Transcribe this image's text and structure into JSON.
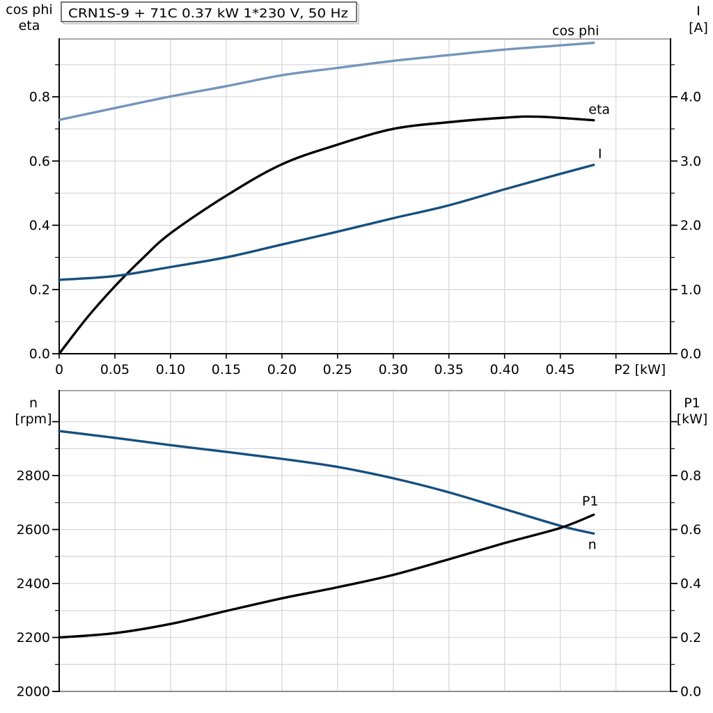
{
  "colors": {
    "background": "#ffffff",
    "grid": "#d9d9d9",
    "frame_gray": "#8c8c8c",
    "axis_black": "#000000",
    "cos_phi_blue": "#7495bb",
    "dark_blue": "#16507f",
    "black": "#000000"
  },
  "chart_data": [
    {
      "type": "line",
      "title": "CRN1S-9 + 71C   0.37 kW   1*230 V, 50 Hz",
      "xlabel": "P2 [kW]",
      "xlim": [
        0,
        0.549
      ],
      "x_ticks": [
        0,
        0.05,
        0.1,
        0.15,
        0.2,
        0.25,
        0.3,
        0.35,
        0.4,
        0.45,
        0.5
      ],
      "x_tick_labels": [
        "0",
        "0.05",
        "0.10",
        "0.15",
        "0.20",
        "0.25",
        "0.30",
        "0.35",
        "0.40",
        "0.45",
        ""
      ],
      "x_gridlines": [
        0.05,
        0.1,
        0.15,
        0.2,
        0.25,
        0.3,
        0.35,
        0.4,
        0.45,
        0.5
      ],
      "left_axis": {
        "label_lines": [
          "cos phi",
          "eta"
        ],
        "lim": [
          0,
          0.98
        ],
        "ticks": [
          0,
          0.2,
          0.4,
          0.6,
          0.8
        ],
        "tick_labels": [
          "0.0",
          "0.2",
          "0.4",
          "0.6",
          "0.8"
        ],
        "minor_tick_step": 0.1,
        "gridlines": [
          0.1,
          0.2,
          0.3,
          0.4,
          0.5,
          0.6,
          0.7,
          0.8,
          0.9
        ]
      },
      "right_axis": {
        "label_lines": [
          "I",
          "[A]"
        ],
        "lim": [
          0,
          4.9
        ],
        "ticks": [
          0,
          1,
          2,
          3,
          4
        ],
        "tick_labels": [
          "0.0",
          "1.0",
          "2.0",
          "3.0",
          "4.0"
        ],
        "minor_tick_step": 0.5
      },
      "series": [
        {
          "name": "cos phi",
          "axis": "left",
          "color": "#7495bb",
          "points": [
            [
              0,
              0.728
            ],
            [
              0.05,
              0.765
            ],
            [
              0.1,
              0.801
            ],
            [
              0.15,
              0.833
            ],
            [
              0.2,
              0.867
            ],
            [
              0.25,
              0.89
            ],
            [
              0.3,
              0.912
            ],
            [
              0.35,
              0.93
            ],
            [
              0.4,
              0.947
            ],
            [
              0.45,
              0.96
            ],
            [
              0.48,
              0.968
            ]
          ]
        },
        {
          "name": "eta",
          "axis": "left",
          "color": "#000000",
          "points": [
            [
              0,
              0
            ],
            [
              0.025,
              0.112
            ],
            [
              0.05,
              0.21
            ],
            [
              0.075,
              0.297
            ],
            [
              0.1,
              0.375
            ],
            [
              0.15,
              0.492
            ],
            [
              0.2,
              0.59
            ],
            [
              0.25,
              0.651
            ],
            [
              0.3,
              0.7
            ],
            [
              0.35,
              0.721
            ],
            [
              0.4,
              0.735
            ],
            [
              0.43,
              0.738
            ],
            [
              0.48,
              0.727
            ]
          ]
        },
        {
          "name": "I",
          "axis": "right",
          "color": "#16507f",
          "points": [
            [
              0,
              1.15
            ],
            [
              0.05,
              1.21
            ],
            [
              0.1,
              1.35
            ],
            [
              0.15,
              1.5
            ],
            [
              0.2,
              1.7
            ],
            [
              0.25,
              1.9
            ],
            [
              0.3,
              2.11
            ],
            [
              0.35,
              2.31
            ],
            [
              0.4,
              2.56
            ],
            [
              0.45,
              2.8
            ],
            [
              0.48,
              2.94
            ]
          ]
        }
      ]
    },
    {
      "type": "line",
      "title": "",
      "xlabel": "",
      "xlim": [
        0,
        0.549
      ],
      "x_ticks": [],
      "x_tick_labels": [],
      "x_gridlines": [
        0.05,
        0.1,
        0.15,
        0.2,
        0.25,
        0.3,
        0.35,
        0.4,
        0.45,
        0.5
      ],
      "left_axis": {
        "label_lines": [
          "n",
          "[rpm]"
        ],
        "lim": [
          2000,
          3115
        ],
        "ticks": [
          2000,
          2200,
          2400,
          2600,
          2800,
          3000
        ],
        "tick_labels": [
          "2000",
          "2200",
          "2400",
          "2600",
          "2800",
          ""
        ],
        "minor_tick_step": 100,
        "gridlines": [
          2100,
          2200,
          2300,
          2400,
          2500,
          2600,
          2700,
          2800,
          2900,
          3000
        ]
      },
      "right_axis": {
        "label_lines": [
          "P1",
          "[kW]"
        ],
        "lim": [
          0,
          1.115
        ],
        "ticks": [
          0,
          0.2,
          0.4,
          0.6,
          0.8,
          1.0
        ],
        "tick_labels": [
          "0.0",
          "0.2",
          "0.4",
          "0.6",
          "0.8",
          ""
        ],
        "minor_tick_step": 0.1
      },
      "series": [
        {
          "name": "n",
          "axis": "left",
          "color": "#16507f",
          "points": [
            [
              0,
              2965
            ],
            [
              0.05,
              2940
            ],
            [
              0.1,
              2913
            ],
            [
              0.15,
              2888
            ],
            [
              0.2,
              2862
            ],
            [
              0.25,
              2832
            ],
            [
              0.3,
              2790
            ],
            [
              0.35,
              2738
            ],
            [
              0.4,
              2676
            ],
            [
              0.45,
              2614
            ],
            [
              0.48,
              2585
            ]
          ]
        },
        {
          "name": "P1",
          "axis": "right",
          "color": "#000000",
          "points": [
            [
              0,
              0.2
            ],
            [
              0.05,
              0.216
            ],
            [
              0.1,
              0.25
            ],
            [
              0.15,
              0.298
            ],
            [
              0.2,
              0.345
            ],
            [
              0.25,
              0.386
            ],
            [
              0.3,
              0.432
            ],
            [
              0.35,
              0.49
            ],
            [
              0.4,
              0.55
            ],
            [
              0.45,
              0.606
            ],
            [
              0.48,
              0.655
            ]
          ]
        }
      ]
    }
  ]
}
